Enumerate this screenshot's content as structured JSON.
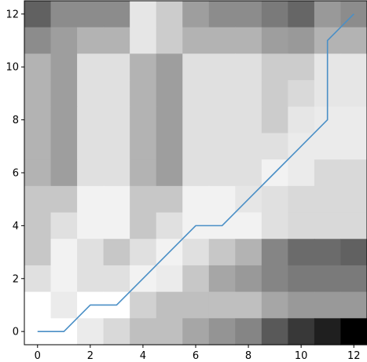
{
  "chart_data": {
    "type": "heatmap",
    "title": "",
    "xlabel": "",
    "ylabel": "",
    "x_range": [
      -0.5,
      12.5
    ],
    "y_range": [
      -0.5,
      12.5
    ],
    "x_ticks": [
      0,
      2,
      4,
      6,
      8,
      10,
      12
    ],
    "y_ticks": [
      0,
      2,
      4,
      6,
      8,
      10,
      12
    ],
    "x_tick_labels": [
      "0",
      "2",
      "4",
      "6",
      "8",
      "10",
      "12"
    ],
    "y_tick_labels": [
      "0",
      "2",
      "4",
      "6",
      "8",
      "10",
      "12"
    ],
    "grid": false,
    "colormap": "gray_r",
    "heatmap_intensity_rows_top_to_bottom_y12_to_y0": [
      [
        0.62,
        0.45,
        0.45,
        0.45,
        0.1,
        0.2,
        0.38,
        0.45,
        0.45,
        0.52,
        0.6,
        0.4,
        0.45
      ],
      [
        0.45,
        0.38,
        0.3,
        0.3,
        0.1,
        0.2,
        0.3,
        0.3,
        0.3,
        0.38,
        0.4,
        0.3,
        0.3
      ],
      [
        0.3,
        0.38,
        0.12,
        0.12,
        0.3,
        0.38,
        0.12,
        0.12,
        0.12,
        0.2,
        0.2,
        0.1,
        0.1
      ],
      [
        0.3,
        0.38,
        0.12,
        0.12,
        0.3,
        0.38,
        0.12,
        0.12,
        0.12,
        0.2,
        0.15,
        0.1,
        0.1
      ],
      [
        0.3,
        0.38,
        0.12,
        0.12,
        0.3,
        0.38,
        0.12,
        0.12,
        0.12,
        0.2,
        0.1,
        0.08,
        0.08
      ],
      [
        0.3,
        0.38,
        0.12,
        0.12,
        0.3,
        0.38,
        0.12,
        0.12,
        0.12,
        0.12,
        0.08,
        0.08,
        0.08
      ],
      [
        0.3,
        0.38,
        0.12,
        0.12,
        0.3,
        0.38,
        0.12,
        0.12,
        0.12,
        0.05,
        0.08,
        0.15,
        0.15
      ],
      [
        0.22,
        0.22,
        0.05,
        0.05,
        0.22,
        0.22,
        0.05,
        0.05,
        0.1,
        0.12,
        0.15,
        0.15,
        0.15
      ],
      [
        0.22,
        0.12,
        0.05,
        0.05,
        0.22,
        0.12,
        0.05,
        0.05,
        0.05,
        0.12,
        0.15,
        0.15,
        0.15
      ],
      [
        0.22,
        0.05,
        0.12,
        0.22,
        0.12,
        0.05,
        0.12,
        0.22,
        0.3,
        0.48,
        0.58,
        0.58,
        0.62
      ],
      [
        0.12,
        0.05,
        0.12,
        0.12,
        0.05,
        0.08,
        0.22,
        0.35,
        0.4,
        0.48,
        0.52,
        0.52,
        0.52
      ],
      [
        0.0,
        0.08,
        0.0,
        0.0,
        0.18,
        0.25,
        0.25,
        0.25,
        0.25,
        0.35,
        0.4,
        0.4,
        0.4
      ],
      [
        0.0,
        0.0,
        0.08,
        0.15,
        0.25,
        0.25,
        0.35,
        0.42,
        0.48,
        0.65,
        0.78,
        0.88,
        1.0
      ]
    ],
    "series": [
      {
        "color": "#4a8fc6",
        "x": [
          0,
          1,
          2,
          3,
          4,
          5,
          6,
          7,
          8,
          9,
          10,
          11,
          11,
          12
        ],
        "y": [
          0,
          0,
          1,
          1,
          2,
          3,
          4,
          4,
          5,
          6,
          7,
          8,
          11,
          12
        ]
      }
    ]
  }
}
